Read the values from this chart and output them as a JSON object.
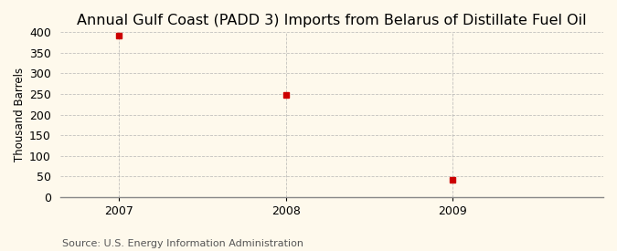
{
  "title": "Annual Gulf Coast (PADD 3) Imports from Belarus of Distillate Fuel Oil",
  "ylabel": "Thousand Barrels",
  "source": "Source: U.S. Energy Information Administration",
  "years": [
    2007,
    2008,
    2009
  ],
  "values": [
    391,
    247,
    42
  ],
  "ylim": [
    0,
    400
  ],
  "yticks": [
    0,
    50,
    100,
    150,
    200,
    250,
    300,
    350,
    400
  ],
  "xlim": [
    2006.65,
    2009.9
  ],
  "marker_color": "#cc0000",
  "marker_size": 4,
  "background_color": "#fef9ec",
  "grid_color": "#aaaaaa",
  "title_fontsize": 11.5,
  "label_fontsize": 8.5,
  "tick_fontsize": 9,
  "source_fontsize": 8
}
